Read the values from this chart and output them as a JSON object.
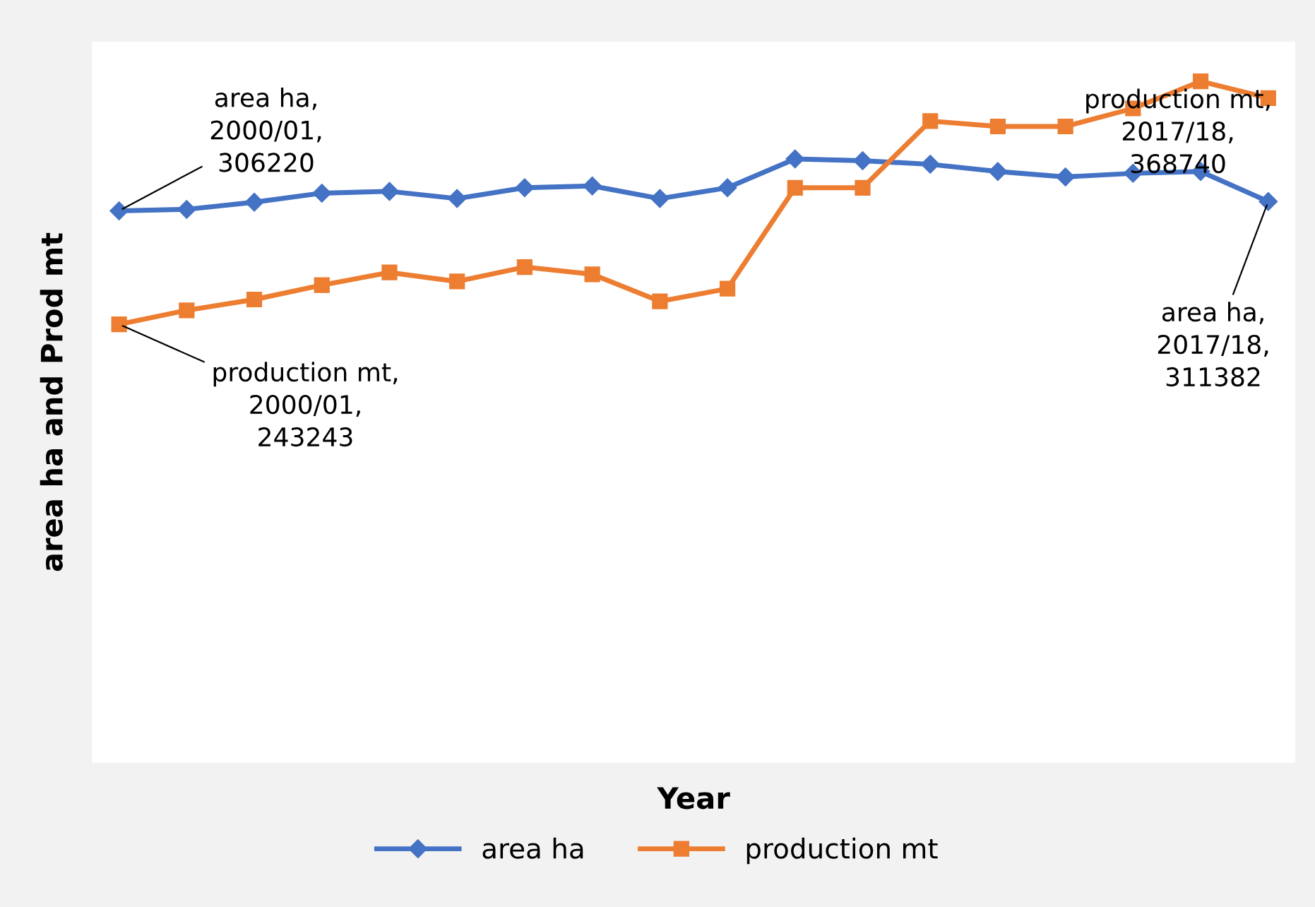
{
  "chart_data": {
    "type": "line",
    "xlabel": "Year",
    "ylabel": "area ha and Prod mt",
    "categories": [
      null,
      null,
      null,
      null,
      null,
      null,
      null,
      null,
      null,
      null,
      null,
      null,
      null,
      null,
      null,
      null,
      null,
      null
    ],
    "ylim": [
      0,
      400000
    ],
    "tick_labels": false,
    "legend": "bottom",
    "line_style": "solid",
    "series": [
      {
        "name": "area ha",
        "color": "#4472c4",
        "marker": "diamond",
        "values": [
          306220,
          307000,
          311000,
          316000,
          317000,
          313000,
          319000,
          320000,
          313000,
          319000,
          335000,
          334000,
          332000,
          328000,
          325000,
          327000,
          328000,
          311382
        ],
        "value_labels": [
          "area ha,\n2000/01,\n306220",
          null,
          null,
          null,
          null,
          null,
          null,
          null,
          null,
          null,
          null,
          null,
          null,
          null,
          null,
          null,
          null,
          "area ha,\n2017/18,\n311382"
        ]
      },
      {
        "name": "production mt",
        "color": "#ed7d31",
        "marker": "square",
        "values": [
          243243,
          251000,
          257000,
          265000,
          272000,
          267000,
          275000,
          271000,
          256000,
          263000,
          319000,
          319000,
          356000,
          353000,
          353000,
          363000,
          378000,
          368740
        ],
        "value_labels": [
          "production mt,\n2000/01,\n243243",
          null,
          null,
          null,
          null,
          null,
          null,
          null,
          null,
          null,
          null,
          null,
          null,
          null,
          null,
          null,
          null,
          "production mt,\n2017/18,\n368740"
        ]
      }
    ]
  }
}
